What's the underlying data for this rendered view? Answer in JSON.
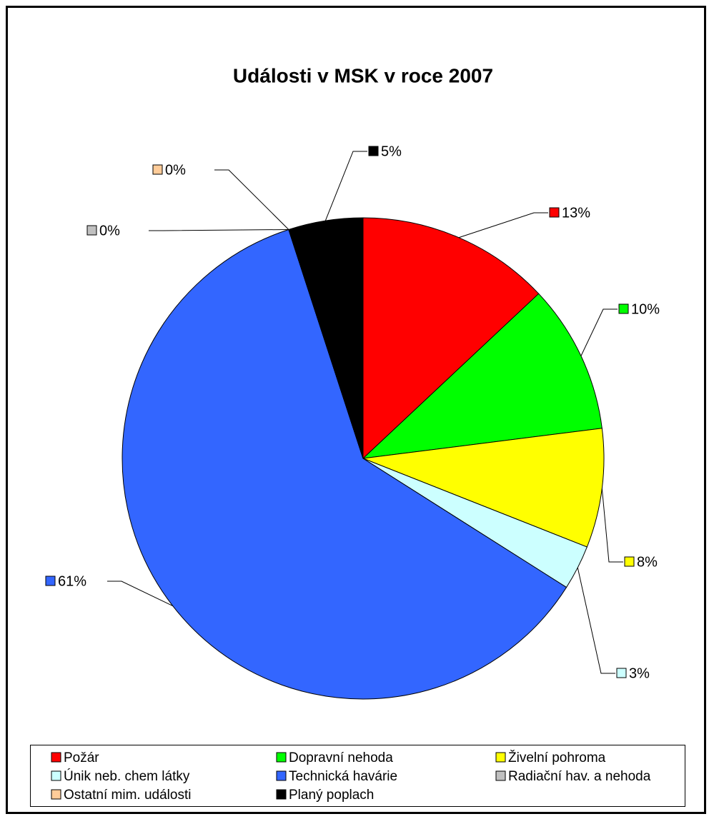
{
  "chart_data": {
    "type": "pie",
    "title": "Události v MSK v roce 2007",
    "categories": [
      "Požár",
      "Dopravní nehoda",
      "Živelní pohroma",
      "Únik neb. chem látky",
      "Technická havárie",
      "Radiační hav. a nehoda",
      "Ostatní mim. události",
      "Planý poplach"
    ],
    "values": [
      13,
      10,
      8,
      3,
      61,
      0,
      0,
      5
    ],
    "value_labels": [
      "13%",
      "10%",
      "8%",
      "3%",
      "61%",
      "0%",
      "0%",
      "5%"
    ],
    "colors": [
      "#ff0000",
      "#00ff00",
      "#ffff00",
      "#ccffff",
      "#3366ff",
      "#c0c0c0",
      "#ffcc99",
      "#000000"
    ],
    "legend": "bottom"
  }
}
